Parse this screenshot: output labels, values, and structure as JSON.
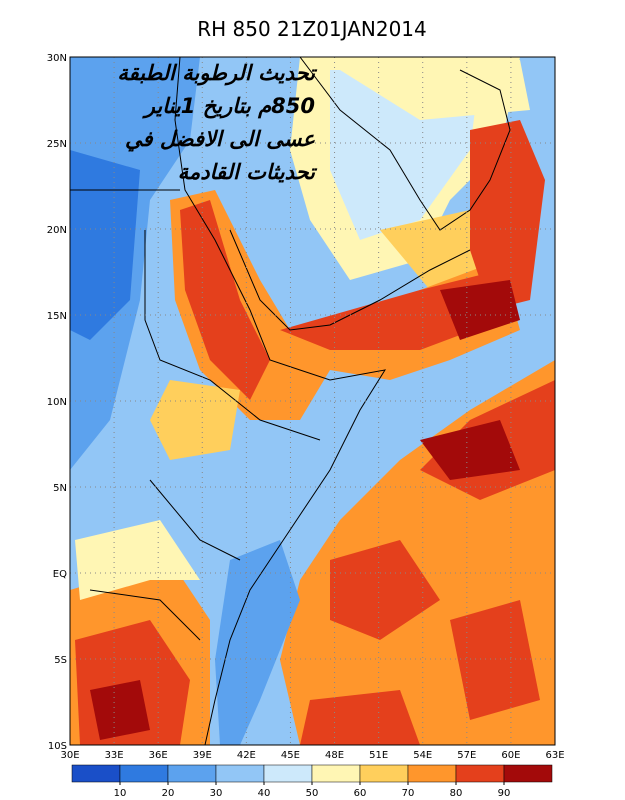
{
  "title": "RH 850 21Z01JAN2014",
  "overlay_text": [
    "تحديث الرطوبة الطبقة",
    "850م بتاريخ 1يناير",
    "عسى الى الافضل في",
    "تحديثات القادمة"
  ],
  "map": {
    "lon_labels": [
      "30E",
      "33E",
      "36E",
      "39E",
      "42E",
      "45E",
      "48E",
      "51E",
      "54E",
      "57E",
      "60E",
      "63E"
    ],
    "lat_labels": [
      "30N",
      "25N",
      "20N",
      "15N",
      "10N",
      "5N",
      "EQ",
      "5S",
      "10S"
    ]
  },
  "colorbar": {
    "colors": [
      "#1a4fc8",
      "#2f7ae0",
      "#5ca2ee",
      "#92c6f6",
      "#cde9fb",
      "#fff6b4",
      "#ffcf5c",
      "#ff962c",
      "#e4401c",
      "#a30a0a"
    ],
    "ticks": [
      10,
      20,
      30,
      40,
      50,
      60,
      70,
      80,
      90
    ]
  }
}
